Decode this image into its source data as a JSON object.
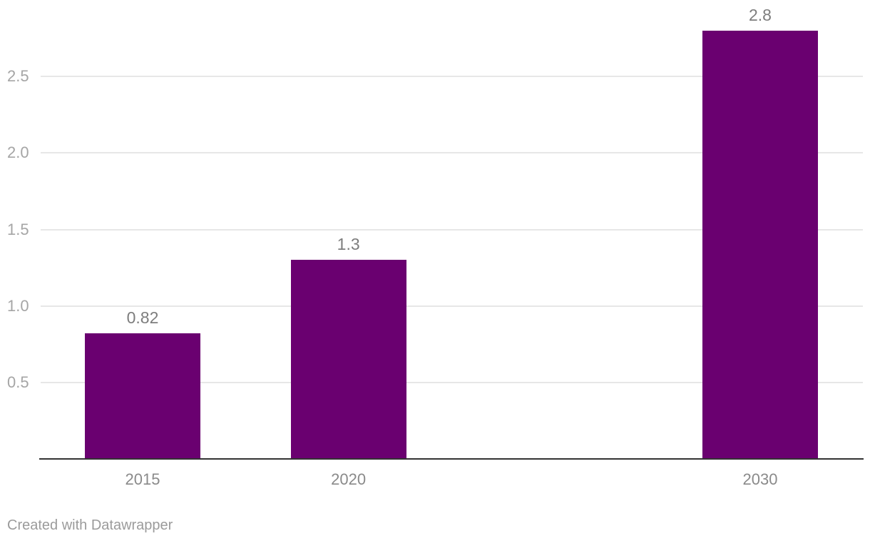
{
  "chart_data": {
    "type": "bar",
    "title": "",
    "xlabel": "",
    "ylabel": "",
    "categories": [
      "2015",
      "2020",
      "2030"
    ],
    "x_numeric": [
      2015,
      2020,
      2030
    ],
    "values": [
      0.82,
      1.3,
      2.8
    ],
    "bar_labels": [
      "0.82",
      "1.3",
      "2.8"
    ],
    "y_ticks": [
      0.5,
      1.0,
      1.5,
      2.0,
      2.5
    ],
    "y_tick_labels": [
      "0.5",
      "1.0",
      "1.5",
      "2.0",
      "2.5"
    ],
    "ylim": [
      0,
      2.9
    ],
    "x_axis_type": "linear-years",
    "grid": "horizontal",
    "legend": "none"
  },
  "colors": {
    "bar": "#6a0070",
    "gridline": "#e7e7e7",
    "axis_line": "#333333",
    "y_tick_label": "#a5a5a5",
    "x_tick_label": "#8a8a8a",
    "value_label": "#7d7d7d",
    "footer": "#9b9b9b",
    "background": "#ffffff"
  },
  "footer": {
    "credit": "Created with Datawrapper"
  }
}
